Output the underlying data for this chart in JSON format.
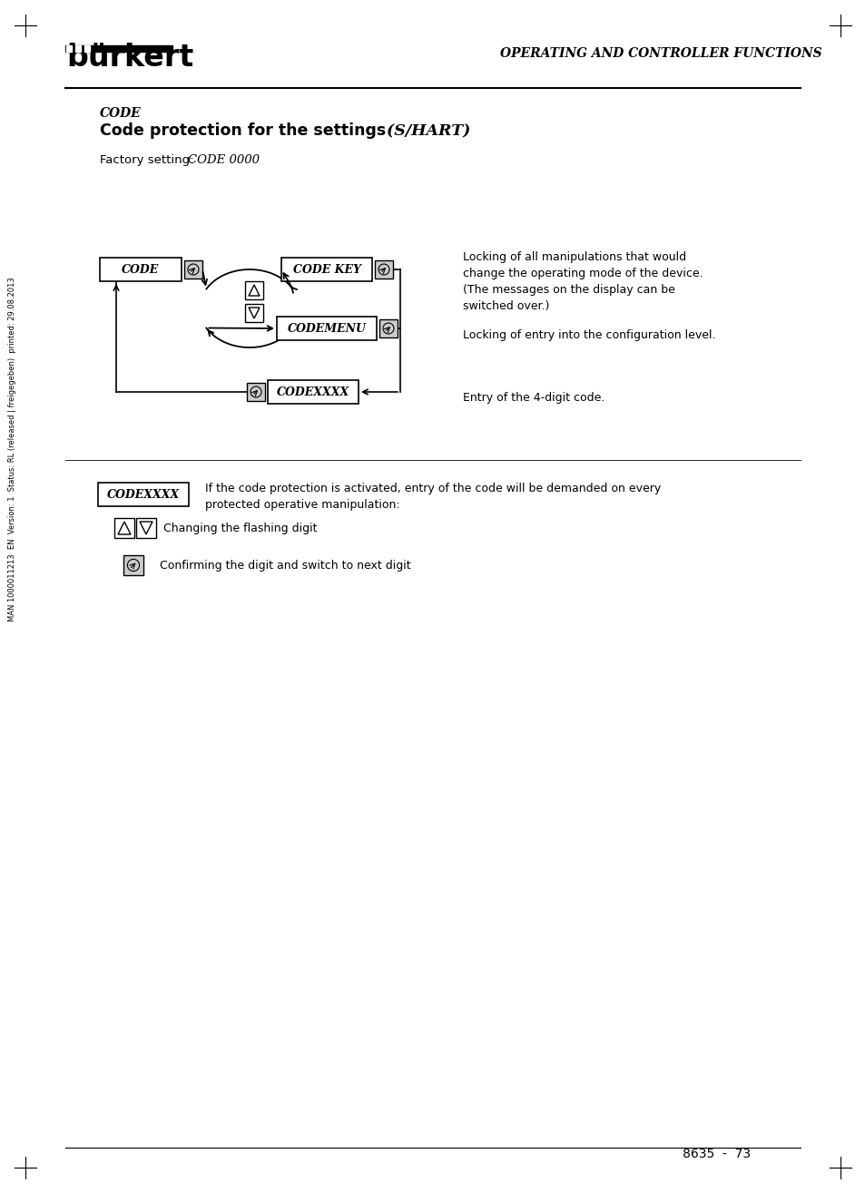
{
  "bg_color": "#ffffff",
  "header_title": "OPERATING AND CONTROLLER FUNCTIONS",
  "section_label": "CODE",
  "section_title_bold": "Code protection for the settings",
  "section_title_italic": " (S/HART)",
  "factory_setting_normal": "Factory setting: ",
  "factory_setting_italic": "CODE 0000",
  "box_code_label": "CODE",
  "box_codekey_label": "CODE KEY",
  "box_codemenu_label": "CODEMENU",
  "box_codexxxx_label": "CODEXXXX",
  "desc_codekey": "Locking of all manipulations that would\nchange the operating mode of the device.\n(The messages on the display can be\nswitched over.)",
  "desc_codemenu": "Locking of entry into the configuration level.",
  "desc_codexxxx": "Entry of the 4-digit code.",
  "note_codexxxx_text": "If the code protection is activated, entry of the code will be demanded on every\nprotected operative manipulation:",
  "note_updown": "Changing the flashing digit",
  "note_confirm": "Confirming the digit and switch to next digit",
  "footer_page": "8635  -  73",
  "sidebar_text": "MAN 1000011213  EN  Version: 1  Status: RL (released | freigegeben)  printed: 29.08.2013"
}
